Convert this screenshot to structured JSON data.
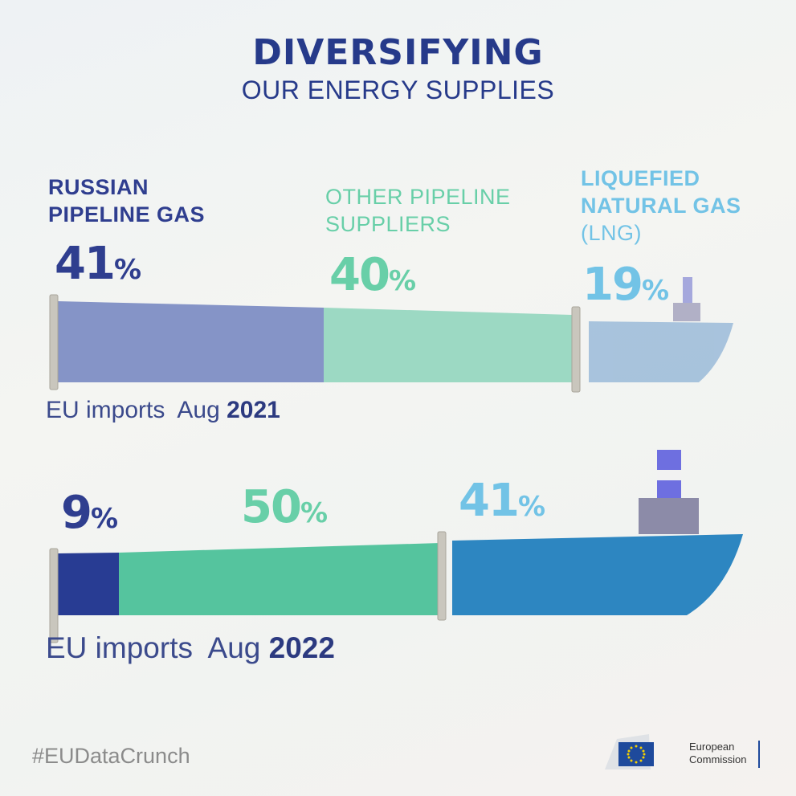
{
  "title": "DIVERSIFYING",
  "subtitle": "OUR ENERGY SUPPLIES",
  "categories": {
    "russian": [
      "RUSSIAN",
      "PIPELINE GAS"
    ],
    "other": [
      "OTHER PIPELINE",
      "SUPPLIERS"
    ],
    "lng": [
      "LIQUEFIED",
      "NATURAL GAS",
      "(LNG)"
    ]
  },
  "percent_sign": "%",
  "rows": [
    {
      "label": "EU imports",
      "month": "Aug",
      "year": "2021",
      "values": [
        "41",
        "40",
        "19"
      ]
    },
    {
      "label": "EU imports",
      "month": "Aug",
      "year": "2022",
      "values": [
        "9",
        "50",
        "41"
      ]
    }
  ],
  "hashtag": "#EUDataCrunch",
  "logo": {
    "line1": "European",
    "line2": "Commission"
  },
  "colors": {
    "navy": "#2f3e8f",
    "teal": "#68cfa8",
    "lightblue": "#72c3e6"
  },
  "chart_data": {
    "type": "bar",
    "stacked": true,
    "title": "DIVERSIFYING OUR ENERGY SUPPLIES",
    "categories": [
      "EU imports Aug 2021",
      "EU imports Aug 2022"
    ],
    "series": [
      {
        "name": "Russian pipeline gas",
        "values": [
          41,
          9
        ]
      },
      {
        "name": "Other pipeline suppliers",
        "values": [
          40,
          50
        ]
      },
      {
        "name": "Liquefied natural gas (LNG)",
        "values": [
          19,
          41
        ]
      }
    ],
    "unit": "%"
  }
}
